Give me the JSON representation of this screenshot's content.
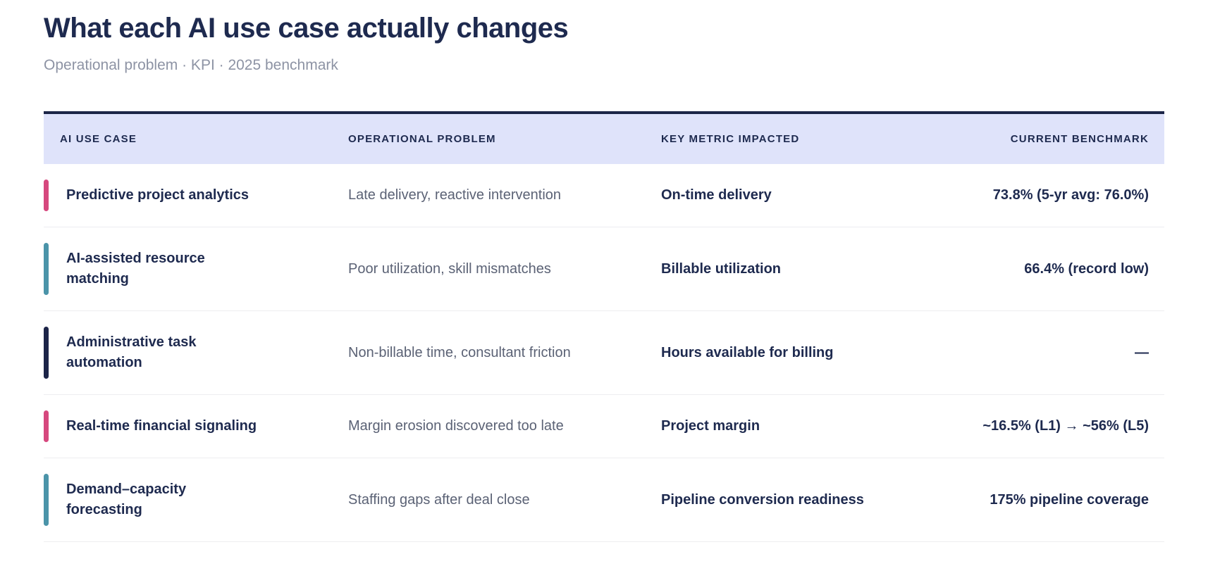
{
  "page": {
    "title": "What each AI use case actually changes",
    "subtitle": "Operational problem · KPI · 2025 benchmark"
  },
  "table": {
    "columns": [
      "AI USE CASE",
      "OPERATIONAL PROBLEM",
      "KEY METRIC IMPACTED",
      "CURRENT BENCHMARK"
    ],
    "accent_colors": {
      "pink": "#d6487e",
      "teal": "#4b94a9",
      "navy": "#1c2448"
    },
    "style": {
      "header_background": "#dfe3fa",
      "top_border_color": "#1c2547",
      "heading_text_color": "#1e2a4f",
      "secondary_text_color": "#5b6275"
    },
    "rows": [
      {
        "use_case": "Predictive project analytics",
        "accent": "#d6487e",
        "problem": "Late delivery, reactive intervention",
        "metric": "On-time delivery",
        "benchmark": "73.8% (5-yr avg: 76.0%)"
      },
      {
        "use_case": "AI-assisted resource\nmatching",
        "accent": "#4b94a9",
        "problem": "Poor utilization, skill mismatches",
        "metric": "Billable utilization",
        "benchmark": "66.4% (record low)"
      },
      {
        "use_case": "Administrative task\nautomation",
        "accent": "#1c2448",
        "problem": "Non-billable time, consultant friction",
        "metric": "Hours available for billing",
        "benchmark": "—"
      },
      {
        "use_case": "Real-time financial signaling",
        "accent": "#d6487e",
        "problem": "Margin erosion discovered too late",
        "metric": "Project margin",
        "benchmark": "~16.5% (L1) → ~56% (L5)"
      },
      {
        "use_case": "Demand–capacity\nforecasting",
        "accent": "#4b94a9",
        "problem": "Staffing gaps after deal close",
        "metric": "Pipeline conversion readiness",
        "benchmark": "175% pipeline coverage"
      }
    ]
  }
}
